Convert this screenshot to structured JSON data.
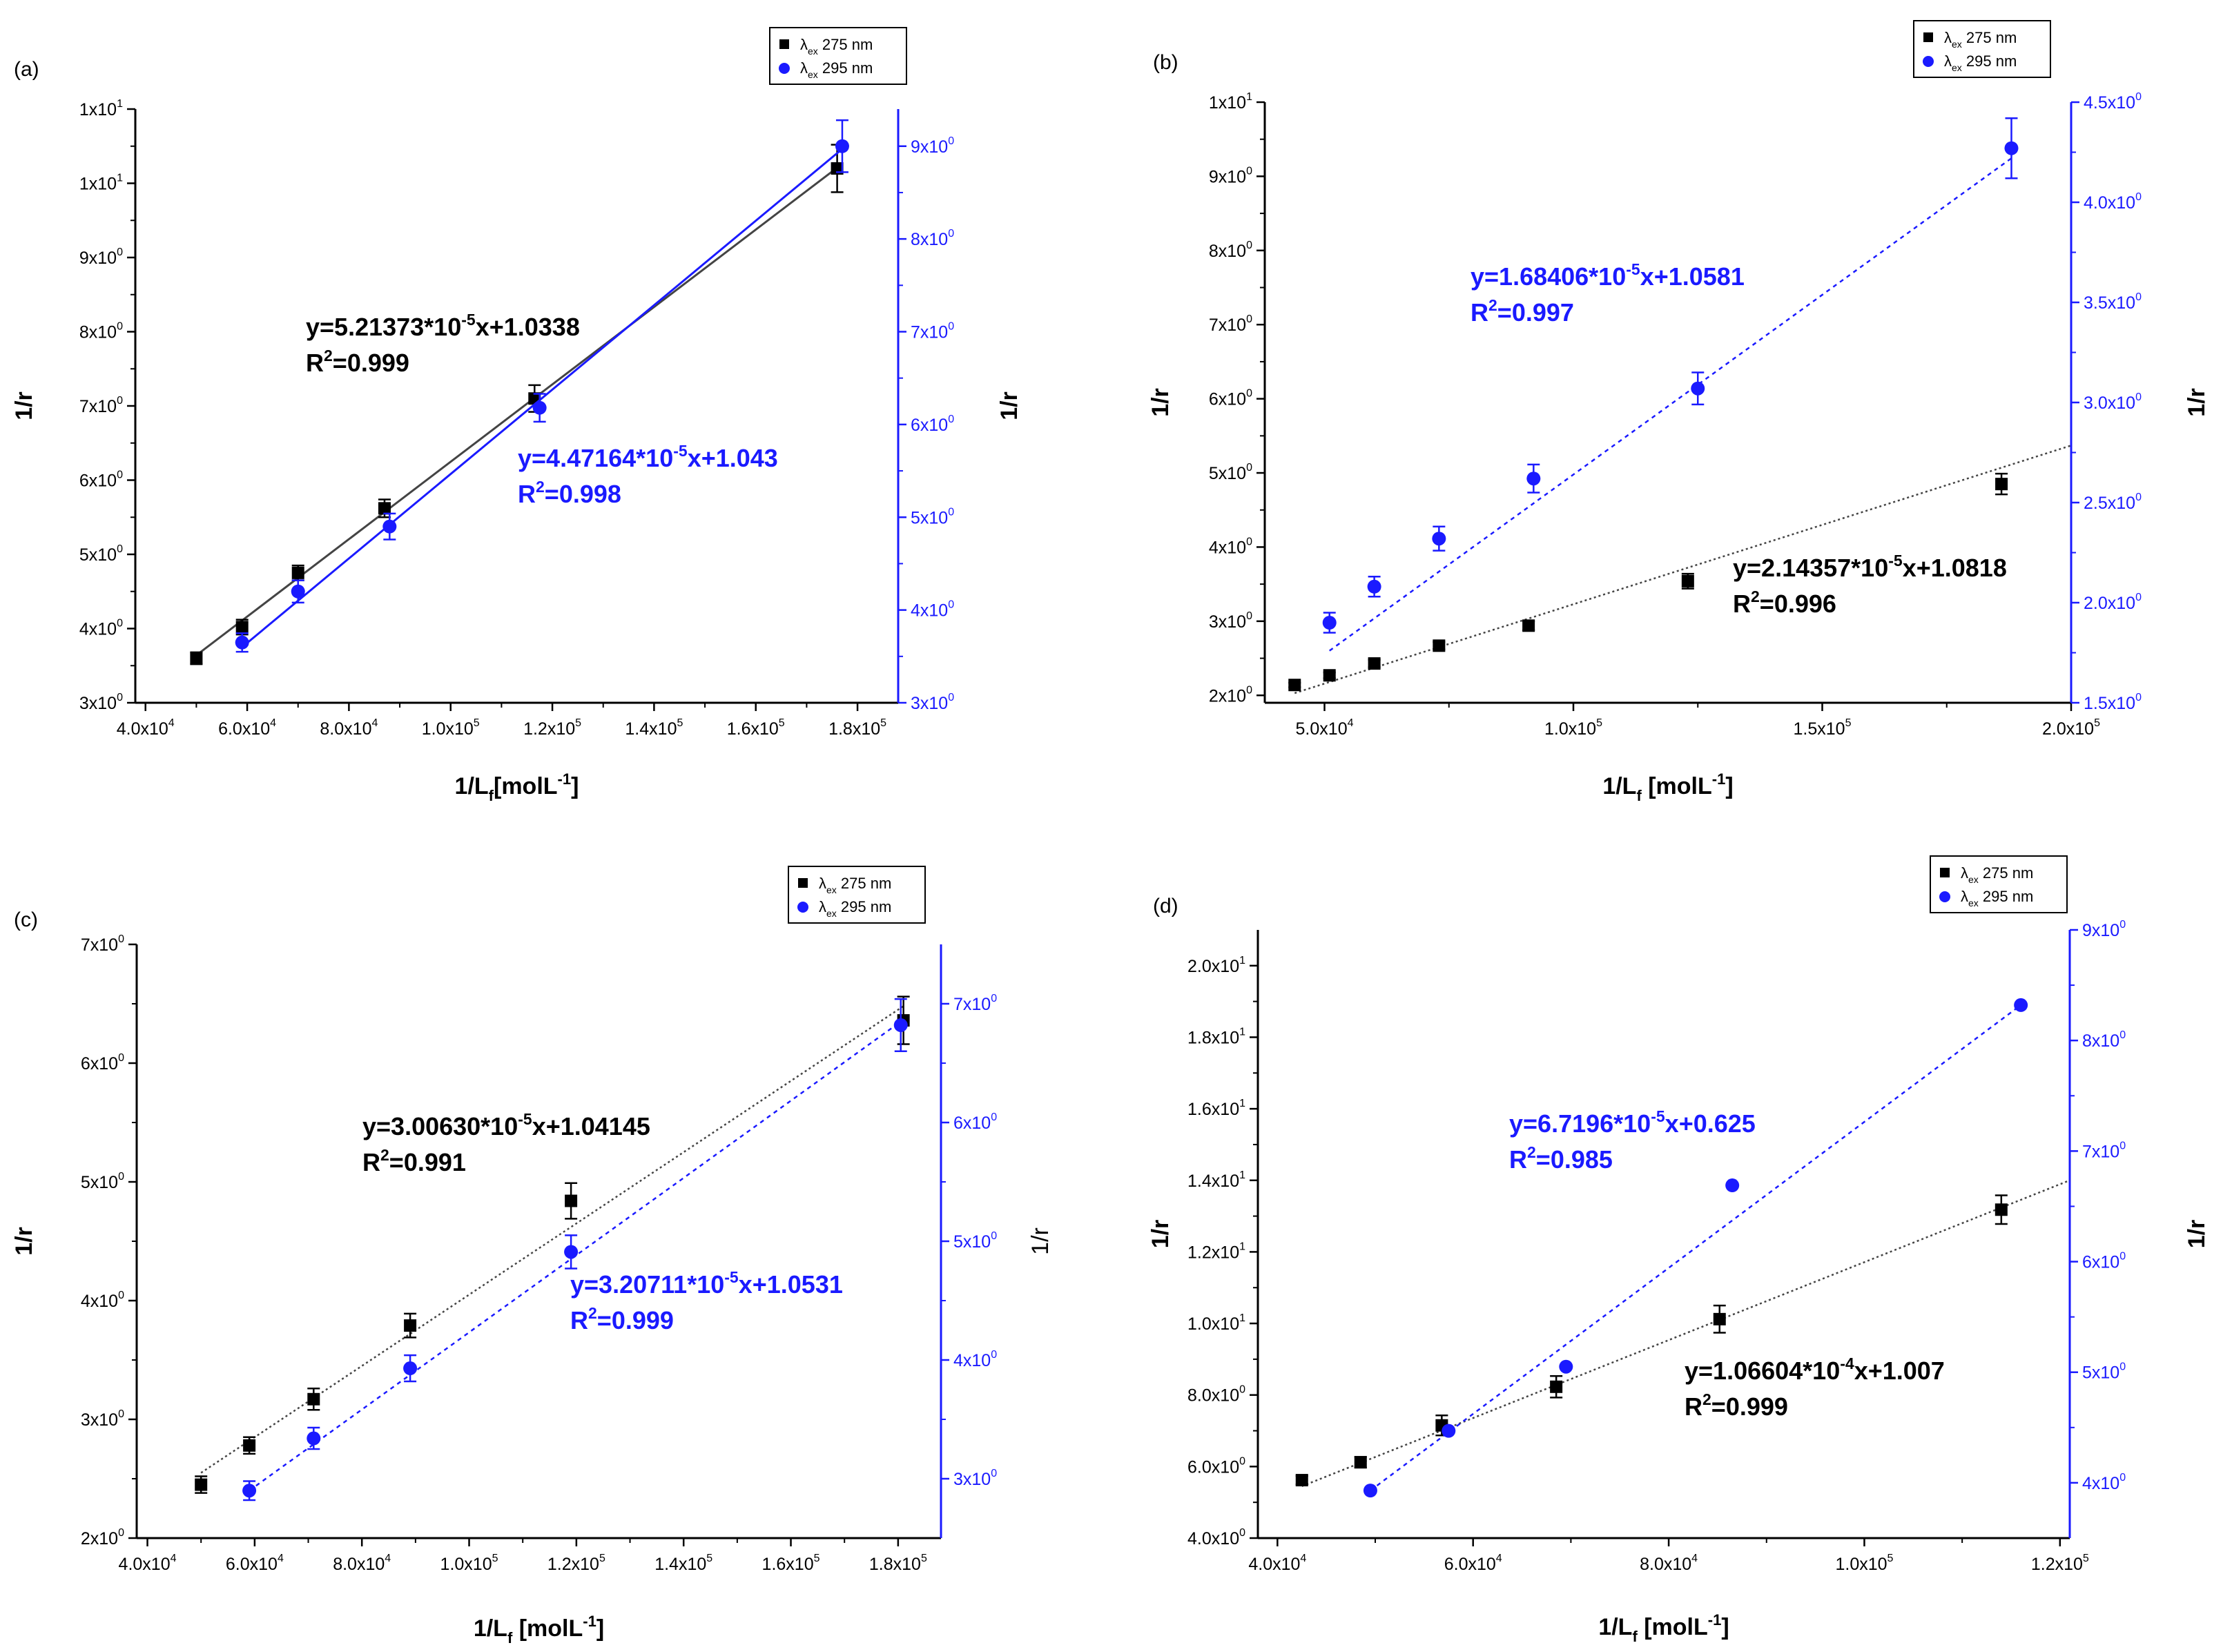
{
  "figure": {
    "colors": {
      "black_series": "#000000",
      "blue_series": "#1a1aff",
      "trend_black": "#444444"
    },
    "legend": {
      "black_label": "275 nm",
      "blue_label": "295 nm",
      "symbol": "λ",
      "subscript": "ex",
      "placement": "top-right"
    }
  },
  "chart_data": [
    {
      "panel": "(a)",
      "type": "scatter",
      "xlabel": "1/L",
      "xlabel_sub": "f",
      "xlabel_unit": "[molL",
      "xlabel_unit_exp": "-1",
      "xlabel_close": "]",
      "ylabel_left": "1/r",
      "ylabel_right": "1/r",
      "ylabel_right_bold": true,
      "xlim": [
        38000,
        188000
      ],
      "ylim_left": [
        3.0,
        11.0
      ],
      "ylim_right": [
        3.0,
        9.4
      ],
      "x_ticks": [
        40000,
        60000,
        80000,
        100000,
        120000,
        140000,
        160000,
        180000
      ],
      "x_tick_labels": [
        "4.0x10",
        "6.0x10",
        "8.0x10",
        "1.0x10",
        "1.2x10",
        "1.4x10",
        "1.6x10",
        "1.8x10"
      ],
      "x_tick_exps": [
        "4",
        "4",
        "4",
        "5",
        "5",
        "5",
        "5",
        "5"
      ],
      "y_left_ticks": [
        3,
        4,
        5,
        6,
        7,
        8,
        9,
        10,
        11
      ],
      "y_left_labels": [
        "3x10",
        "4x10",
        "5x10",
        "6x10",
        "7x10",
        "8x10",
        "9x10",
        "1x10",
        "1x10"
      ],
      "y_left_exps": [
        "0",
        "0",
        "0",
        "0",
        "0",
        "0",
        "0",
        "1",
        "1"
      ],
      "y_right_ticks": [
        3,
        4,
        5,
        6,
        7,
        8,
        9
      ],
      "y_right_labels": [
        "3x10",
        "4x10",
        "5x10",
        "6x10",
        "7x10",
        "8x10",
        "9x10"
      ],
      "y_right_exps": [
        "0",
        "0",
        "0",
        "0",
        "0",
        "0",
        "0"
      ],
      "series": [
        {
          "name": "λex 275 nm",
          "color": "#000000",
          "marker": "square",
          "axis": "left",
          "line": "solid",
          "x": [
            50000,
            59000,
            70000,
            87000,
            116500,
            176000
          ],
          "y": [
            3.6,
            4.02,
            4.75,
            5.62,
            7.1,
            10.2
          ],
          "err": [
            0.08,
            0.1,
            0.1,
            0.12,
            0.18,
            0.32
          ],
          "fit": [
            3.64,
            10.21
          ]
        },
        {
          "name": "λex 295 nm",
          "color": "#1a1aff",
          "marker": "circle",
          "axis": "right",
          "line": "solid",
          "x": [
            59000,
            70000,
            88000,
            117500,
            177000
          ],
          "y": [
            3.65,
            4.2,
            4.9,
            6.18,
            9.0
          ],
          "err": [
            0.1,
            0.12,
            0.14,
            0.15,
            0.28
          ],
          "fit": [
            3.6,
            8.97
          ]
        }
      ],
      "annotations": [
        {
          "text": "y=5.21373*10",
          "exp": "-5",
          "tail": "x+1.0338",
          "r2": "R",
          "r2_exp": "2",
          "r2_val": "=0.999",
          "color": "#000000"
        },
        {
          "text": "y=4.47164*10",
          "exp": "-5",
          "tail": "x+1.043",
          "r2": "R",
          "r2_exp": "2",
          "r2_val": "=0.998",
          "color": "#1a1aff"
        }
      ]
    },
    {
      "panel": "(b)",
      "type": "scatter",
      "xlabel": "1/L",
      "xlabel_sub": "f",
      "xlabel_unit": " [molL",
      "xlabel_unit_exp": "-1",
      "xlabel_close": "]",
      "ylabel_left": "1/r",
      "ylabel_right": "1/r",
      "ylabel_right_bold": true,
      "xlim": [
        38000,
        200000
      ],
      "ylim_left": [
        1.9,
        10.0
      ],
      "ylim_right": [
        1.5,
        4.5
      ],
      "x_ticks": [
        50000,
        100000,
        150000,
        200000
      ],
      "x_tick_labels": [
        "5.0x10",
        "1.0x10",
        "1.5x10",
        "2.0x10"
      ],
      "x_tick_exps": [
        "4",
        "5",
        "5",
        "5"
      ],
      "y_left_ticks": [
        2,
        3,
        4,
        5,
        6,
        7,
        8,
        9,
        10
      ],
      "y_left_labels": [
        "2x10",
        "3x10",
        "4x10",
        "5x10",
        "6x10",
        "7x10",
        "8x10",
        "9x10",
        "1x10"
      ],
      "y_left_exps": [
        "0",
        "0",
        "0",
        "0",
        "0",
        "0",
        "0",
        "0",
        "1"
      ],
      "y_right_ticks": [
        1.5,
        2.0,
        2.5,
        3.0,
        3.5,
        4.0,
        4.5
      ],
      "y_right_labels": [
        "1.5x10",
        "2.0x10",
        "2.5x10",
        "3.0x10",
        "3.5x10",
        "4.0x10",
        "4.5x10"
      ],
      "y_right_exps": [
        "0",
        "0",
        "0",
        "0",
        "0",
        "0",
        "0"
      ],
      "series": [
        {
          "name": "λex 275 nm",
          "color": "#000000",
          "marker": "square",
          "axis": "left",
          "line": "dotted",
          "x": [
            44000,
            51000,
            60000,
            73000,
            91000,
            123000,
            186000
          ],
          "y": [
            2.14,
            2.27,
            2.43,
            2.67,
            2.94,
            3.54,
            4.85
          ],
          "err": [
            0.03,
            0.04,
            0.05,
            0.05,
            0.06,
            0.1,
            0.14
          ],
          "fit": [
            2.03,
            5.37
          ]
        },
        {
          "name": "λex 295 nm",
          "color": "#1a1aff",
          "marker": "circle",
          "axis": "right",
          "line": "dotted",
          "x": [
            51000,
            60000,
            73000,
            92000,
            125000,
            188000
          ],
          "y": [
            1.9,
            2.08,
            2.32,
            2.62,
            3.07,
            4.27
          ],
          "err": [
            0.05,
            0.05,
            0.06,
            0.07,
            0.08,
            0.15
          ],
          "fit": [
            1.76,
            4.22
          ]
        }
      ],
      "annotations": [
        {
          "text": "y=1.68406*10",
          "exp": "-5",
          "tail": "x+1.0581",
          "r2": "R",
          "r2_exp": "2",
          "r2_val": "=0.997",
          "color": "#1a1aff"
        },
        {
          "text": "y=2.14357*10",
          "exp": "-5",
          "tail": "x+1.0818",
          "r2": "R",
          "r2_exp": "2",
          "r2_val": "=0.996",
          "color": "#000000"
        }
      ]
    },
    {
      "panel": "(c)",
      "type": "scatter",
      "xlabel": "1/L",
      "xlabel_sub": "f",
      "xlabel_unit": " [molL",
      "xlabel_unit_exp": "-1",
      "xlabel_close": "]",
      "ylabel_left": "1/r",
      "ylabel_right": "1/r",
      "ylabel_right_bold": false,
      "xlim": [
        38000,
        188000
      ],
      "ylim_left": [
        2.0,
        7.0
      ],
      "ylim_right": [
        2.5,
        7.5
      ],
      "x_ticks": [
        40000,
        60000,
        80000,
        100000,
        120000,
        140000,
        160000,
        180000
      ],
      "x_tick_labels": [
        "4.0x10",
        "6.0x10",
        "8.0x10",
        "1.0x10",
        "1.2x10",
        "1.4x10",
        "1.6x10",
        "1.8x10"
      ],
      "x_tick_exps": [
        "4",
        "4",
        "4",
        "5",
        "5",
        "5",
        "5",
        "5"
      ],
      "y_left_ticks": [
        2,
        3,
        4,
        5,
        6,
        7
      ],
      "y_left_labels": [
        "2x10",
        "3x10",
        "4x10",
        "5x10",
        "6x10",
        "7x10"
      ],
      "y_left_exps": [
        "0",
        "0",
        "0",
        "0",
        "0",
        "0"
      ],
      "y_right_ticks": [
        3,
        4,
        5,
        6,
        7
      ],
      "y_right_labels": [
        "3x10",
        "4x10",
        "5x10",
        "6x10",
        "7x10"
      ],
      "y_right_exps": [
        "0",
        "0",
        "0",
        "0",
        "0"
      ],
      "series": [
        {
          "name": "λex 275 nm",
          "color": "#000000",
          "marker": "square",
          "axis": "left",
          "line": "dotted",
          "x": [
            50000,
            59000,
            71000,
            89000,
            119000,
            181000
          ],
          "y": [
            2.45,
            2.78,
            3.17,
            3.79,
            4.84,
            6.36
          ],
          "err": [
            0.07,
            0.07,
            0.09,
            0.1,
            0.15,
            0.2
          ],
          "fit": [
            2.55,
            6.48
          ]
        },
        {
          "name": "λex 295 nm",
          "color": "#1a1aff",
          "marker": "circle",
          "axis": "right",
          "line": "dotted",
          "x": [
            59000,
            71000,
            89000,
            119000,
            180500
          ],
          "y": [
            2.9,
            3.34,
            3.93,
            4.91,
            6.82
          ],
          "err": [
            0.08,
            0.09,
            0.11,
            0.14,
            0.22
          ],
          "fit": [
            2.9,
            6.85
          ]
        }
      ],
      "annotations": [
        {
          "text": "y=3.00630*10",
          "exp": "-5",
          "tail": "x+1.04145",
          "r2": "R",
          "r2_exp": "2",
          "r2_val": "=0.991",
          "color": "#000000"
        },
        {
          "text": "y=3.20711*10",
          "exp": "-5",
          "tail": "x+1.0531",
          "r2": "R",
          "r2_exp": "2",
          "r2_val": "=0.999",
          "color": "#1a1aff"
        }
      ]
    },
    {
      "panel": "(d)",
      "type": "scatter",
      "xlabel": "1/L",
      "xlabel_sub": "f",
      "xlabel_unit": " [molL",
      "xlabel_unit_exp": "-1",
      "xlabel_close": "]",
      "ylabel_left": "1/r",
      "ylabel_right": "1/r",
      "ylabel_right_bold": true,
      "xlim": [
        38000,
        121000
      ],
      "ylim_left": [
        4.0,
        21.0
      ],
      "ylim_right": [
        3.5,
        9.0
      ],
      "x_ticks": [
        40000,
        60000,
        80000,
        100000,
        120000
      ],
      "x_tick_labels": [
        "4.0x10",
        "6.0x10",
        "8.0x10",
        "1.0x10",
        "1.2x10"
      ],
      "x_tick_exps": [
        "4",
        "4",
        "4",
        "5",
        "5"
      ],
      "y_left_ticks": [
        4,
        6,
        8,
        10,
        12,
        14,
        16,
        18,
        20
      ],
      "y_left_labels": [
        "4.0x10",
        "6.0x10",
        "8.0x10",
        "1.0x10",
        "1.2x10",
        "1.4x10",
        "1.6x10",
        "1.8x10",
        "2.0x10"
      ],
      "y_left_exps": [
        "0",
        "0",
        "0",
        "1",
        "1",
        "1",
        "1",
        "1",
        "1"
      ],
      "y_right_ticks": [
        4,
        5,
        6,
        7,
        8,
        9
      ],
      "y_right_labels": [
        "4x10",
        "5x10",
        "6x10",
        "7x10",
        "8x10",
        "9x10"
      ],
      "y_right_exps": [
        "0",
        "0",
        "0",
        "0",
        "0",
        "0"
      ],
      "series": [
        {
          "name": "λex 275 nm",
          "color": "#000000",
          "marker": "square",
          "axis": "left",
          "line": "dotted",
          "x": [
            42500,
            48500,
            56800,
            68500,
            85200,
            114000
          ],
          "y": [
            5.62,
            6.12,
            7.15,
            8.23,
            10.12,
            13.18
          ],
          "err": [
            0.12,
            0.15,
            0.28,
            0.3,
            0.38,
            0.4
          ],
          "fit": [
            5.45,
            14.0
          ]
        },
        {
          "name": "λex 295 nm",
          "color": "#1a1aff",
          "marker": "circle",
          "axis": "right",
          "line": "dotted",
          "x": [
            49500,
            57500,
            69500,
            86500,
            116000
          ],
          "y": [
            3.93,
            4.47,
            5.05,
            6.69,
            8.32
          ],
          "err": [
            0,
            0,
            0,
            0,
            0
          ],
          "fit": [
            3.93,
            8.32
          ]
        }
      ],
      "annotations": [
        {
          "text": "y=6.7196*10",
          "exp": "-5",
          "tail": "x+0.625",
          "r2": "R",
          "r2_exp": "2",
          "r2_val": "=0.985",
          "color": "#1a1aff"
        },
        {
          "text": "y=1.06604*10",
          "exp": "-4",
          "tail": "x+1.007",
          "r2": "R",
          "r2_exp": "2",
          "r2_val": "=0.999",
          "color": "#000000"
        }
      ]
    }
  ]
}
